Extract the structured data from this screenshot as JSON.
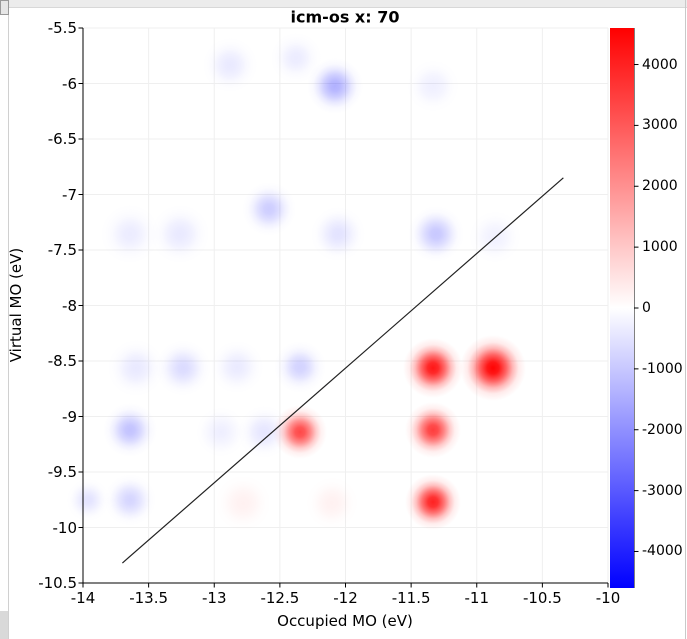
{
  "chart_data": {
    "type": "heatmap",
    "title": "icm-os x: 70",
    "xlabel": "Occupied MO (eV)",
    "ylabel": "Virtual MO (eV)",
    "xlim": [
      -14,
      -10
    ],
    "ylim": [
      -10.5,
      -5.5
    ],
    "xticks": [
      -14,
      -13.5,
      -13,
      -12.5,
      -12,
      -11.5,
      -11,
      -10.5,
      -10
    ],
    "yticks": [
      -5.5,
      -6,
      -6.5,
      -7,
      -7.5,
      -8,
      -8.5,
      -9,
      -9.5,
      -10,
      -10.5
    ],
    "grid": true,
    "legend_position": "none",
    "diagonal_line": {
      "x1": -13.7,
      "y1": -10.32,
      "x2": -10.34,
      "y2": -6.85
    },
    "colorbar": {
      "cmap": "bwr",
      "vmin": -4600,
      "vmax": 4600,
      "ticks": [
        4000,
        3000,
        2000,
        1000,
        0,
        -1000,
        -2000,
        -3000,
        -4000
      ]
    },
    "points": [
      {
        "x": -12.88,
        "y": -5.83,
        "v": -400,
        "r": 28
      },
      {
        "x": -12.38,
        "y": -5.77,
        "v": -350,
        "r": 26
      },
      {
        "x": -12.08,
        "y": -6.02,
        "v": -1400,
        "r": 28
      },
      {
        "x": -11.33,
        "y": -6.02,
        "v": -280,
        "r": 28
      },
      {
        "x": -13.64,
        "y": -7.36,
        "v": -350,
        "r": 30
      },
      {
        "x": -13.26,
        "y": -7.36,
        "v": -400,
        "r": 30
      },
      {
        "x": -12.58,
        "y": -7.13,
        "v": -900,
        "r": 27
      },
      {
        "x": -12.06,
        "y": -7.36,
        "v": -500,
        "r": 28
      },
      {
        "x": -11.31,
        "y": -7.36,
        "v": -1000,
        "r": 28
      },
      {
        "x": -10.86,
        "y": -7.38,
        "v": -250,
        "r": 28
      },
      {
        "x": -13.6,
        "y": -8.56,
        "v": -400,
        "r": 29
      },
      {
        "x": -13.24,
        "y": -8.56,
        "v": -650,
        "r": 28
      },
      {
        "x": -12.83,
        "y": -8.55,
        "v": -380,
        "r": 27
      },
      {
        "x": -12.35,
        "y": -8.55,
        "v": -800,
        "r": 26
      },
      {
        "x": -11.33,
        "y": -8.56,
        "v": 4200,
        "r": 30
      },
      {
        "x": -10.88,
        "y": -8.56,
        "v": 4550,
        "r": 33
      },
      {
        "x": -13.64,
        "y": -9.12,
        "v": -1100,
        "r": 27
      },
      {
        "x": -12.95,
        "y": -9.14,
        "v": -300,
        "r": 27
      },
      {
        "x": -12.62,
        "y": -9.14,
        "v": -450,
        "r": 27
      },
      {
        "x": -12.35,
        "y": -9.14,
        "v": 3300,
        "r": 27
      },
      {
        "x": -11.33,
        "y": -9.12,
        "v": 3500,
        "r": 28
      },
      {
        "x": -13.96,
        "y": -9.75,
        "v": -500,
        "r": 22
      },
      {
        "x": -13.64,
        "y": -9.75,
        "v": -750,
        "r": 26
      },
      {
        "x": -12.78,
        "y": -9.78,
        "v": 250,
        "r": 30
      },
      {
        "x": -12.1,
        "y": -9.78,
        "v": 250,
        "r": 28
      },
      {
        "x": -11.33,
        "y": -9.77,
        "v": 4000,
        "r": 28
      }
    ]
  },
  "colors": {
    "positive": "#ff0000",
    "negative": "#0000ff",
    "diagonal_line": "#222222",
    "grid": "#efefef",
    "axis": "#000000"
  }
}
